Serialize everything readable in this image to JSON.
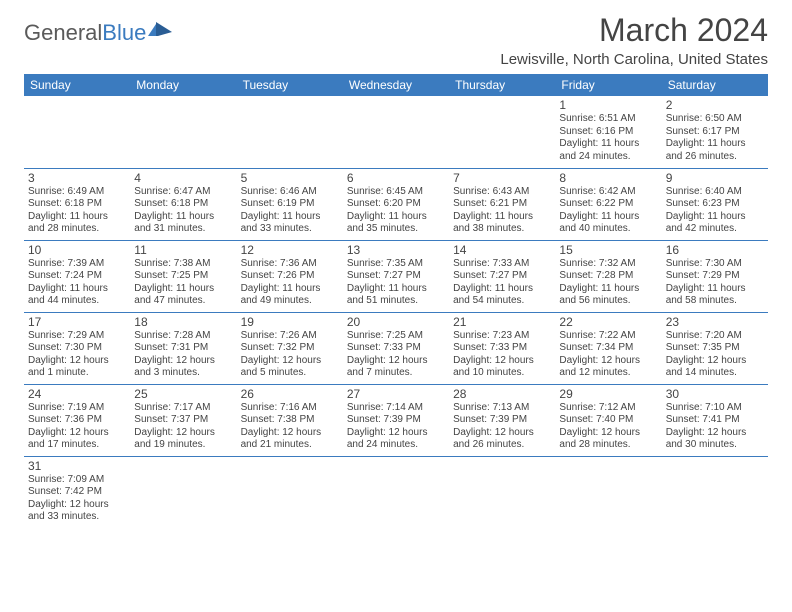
{
  "logo": {
    "general": "General",
    "blue": "Blue"
  },
  "title": "March 2024",
  "location": "Lewisville, North Carolina, United States",
  "colors": {
    "header_bg": "#3b7bbf",
    "header_fg": "#ffffff",
    "text": "#444444",
    "border": "#3b7bbf",
    "background": "#ffffff"
  },
  "day_headers": [
    "Sunday",
    "Monday",
    "Tuesday",
    "Wednesday",
    "Thursday",
    "Friday",
    "Saturday"
  ],
  "weeks": [
    [
      null,
      null,
      null,
      null,
      null,
      {
        "n": "1",
        "sr": "6:51 AM",
        "ss": "6:16 PM",
        "dl": "11 hours and 24 minutes."
      },
      {
        "n": "2",
        "sr": "6:50 AM",
        "ss": "6:17 PM",
        "dl": "11 hours and 26 minutes."
      }
    ],
    [
      {
        "n": "3",
        "sr": "6:49 AM",
        "ss": "6:18 PM",
        "dl": "11 hours and 28 minutes."
      },
      {
        "n": "4",
        "sr": "6:47 AM",
        "ss": "6:18 PM",
        "dl": "11 hours and 31 minutes."
      },
      {
        "n": "5",
        "sr": "6:46 AM",
        "ss": "6:19 PM",
        "dl": "11 hours and 33 minutes."
      },
      {
        "n": "6",
        "sr": "6:45 AM",
        "ss": "6:20 PM",
        "dl": "11 hours and 35 minutes."
      },
      {
        "n": "7",
        "sr": "6:43 AM",
        "ss": "6:21 PM",
        "dl": "11 hours and 38 minutes."
      },
      {
        "n": "8",
        "sr": "6:42 AM",
        "ss": "6:22 PM",
        "dl": "11 hours and 40 minutes."
      },
      {
        "n": "9",
        "sr": "6:40 AM",
        "ss": "6:23 PM",
        "dl": "11 hours and 42 minutes."
      }
    ],
    [
      {
        "n": "10",
        "sr": "7:39 AM",
        "ss": "7:24 PM",
        "dl": "11 hours and 44 minutes."
      },
      {
        "n": "11",
        "sr": "7:38 AM",
        "ss": "7:25 PM",
        "dl": "11 hours and 47 minutes."
      },
      {
        "n": "12",
        "sr": "7:36 AM",
        "ss": "7:26 PM",
        "dl": "11 hours and 49 minutes."
      },
      {
        "n": "13",
        "sr": "7:35 AM",
        "ss": "7:27 PM",
        "dl": "11 hours and 51 minutes."
      },
      {
        "n": "14",
        "sr": "7:33 AM",
        "ss": "7:27 PM",
        "dl": "11 hours and 54 minutes."
      },
      {
        "n": "15",
        "sr": "7:32 AM",
        "ss": "7:28 PM",
        "dl": "11 hours and 56 minutes."
      },
      {
        "n": "16",
        "sr": "7:30 AM",
        "ss": "7:29 PM",
        "dl": "11 hours and 58 minutes."
      }
    ],
    [
      {
        "n": "17",
        "sr": "7:29 AM",
        "ss": "7:30 PM",
        "dl": "12 hours and 1 minute."
      },
      {
        "n": "18",
        "sr": "7:28 AM",
        "ss": "7:31 PM",
        "dl": "12 hours and 3 minutes."
      },
      {
        "n": "19",
        "sr": "7:26 AM",
        "ss": "7:32 PM",
        "dl": "12 hours and 5 minutes."
      },
      {
        "n": "20",
        "sr": "7:25 AM",
        "ss": "7:33 PM",
        "dl": "12 hours and 7 minutes."
      },
      {
        "n": "21",
        "sr": "7:23 AM",
        "ss": "7:33 PM",
        "dl": "12 hours and 10 minutes."
      },
      {
        "n": "22",
        "sr": "7:22 AM",
        "ss": "7:34 PM",
        "dl": "12 hours and 12 minutes."
      },
      {
        "n": "23",
        "sr": "7:20 AM",
        "ss": "7:35 PM",
        "dl": "12 hours and 14 minutes."
      }
    ],
    [
      {
        "n": "24",
        "sr": "7:19 AM",
        "ss": "7:36 PM",
        "dl": "12 hours and 17 minutes."
      },
      {
        "n": "25",
        "sr": "7:17 AM",
        "ss": "7:37 PM",
        "dl": "12 hours and 19 minutes."
      },
      {
        "n": "26",
        "sr": "7:16 AM",
        "ss": "7:38 PM",
        "dl": "12 hours and 21 minutes."
      },
      {
        "n": "27",
        "sr": "7:14 AM",
        "ss": "7:39 PM",
        "dl": "12 hours and 24 minutes."
      },
      {
        "n": "28",
        "sr": "7:13 AM",
        "ss": "7:39 PM",
        "dl": "12 hours and 26 minutes."
      },
      {
        "n": "29",
        "sr": "7:12 AM",
        "ss": "7:40 PM",
        "dl": "12 hours and 28 minutes."
      },
      {
        "n": "30",
        "sr": "7:10 AM",
        "ss": "7:41 PM",
        "dl": "12 hours and 30 minutes."
      }
    ],
    [
      {
        "n": "31",
        "sr": "7:09 AM",
        "ss": "7:42 PM",
        "dl": "12 hours and 33 minutes."
      },
      null,
      null,
      null,
      null,
      null,
      null
    ]
  ],
  "labels": {
    "sunrise": "Sunrise:",
    "sunset": "Sunset:",
    "daylight": "Daylight:"
  }
}
